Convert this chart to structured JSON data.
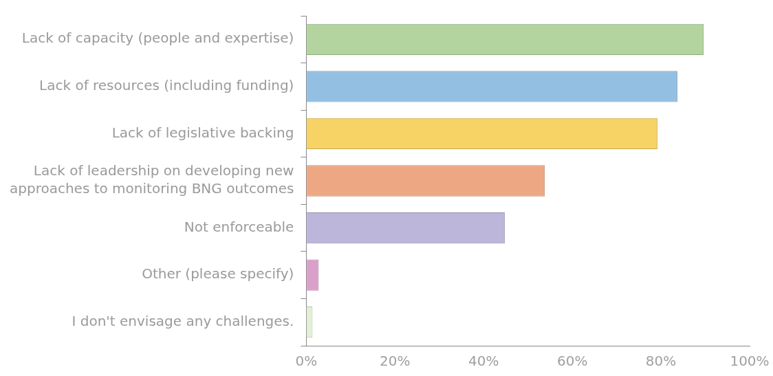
{
  "chart_data": {
    "type": "bar",
    "orientation": "horizontal",
    "categories": [
      "Lack of capacity (people and expertise)",
      "Lack of resources (including funding)",
      "Lack of legislative backing",
      "Lack of leadership on developing new approaches to monitoring BNG outcomes",
      "Not enforceable",
      "Other (please specify)",
      "I don't envisage any challenges."
    ],
    "values": [
      89.6,
      83.7,
      79.2,
      53.8,
      44.8,
      2.8,
      1.4
    ],
    "colors": [
      "#b3d49e",
      "#93bfe2",
      "#f7d264",
      "#eda883",
      "#bbb6da",
      "#d9a0c9",
      "#e3f0d6"
    ],
    "xlim": [
      0,
      100
    ],
    "xticks": [
      {
        "value": 0,
        "label": "0%"
      },
      {
        "value": 20,
        "label": "20%"
      },
      {
        "value": 40,
        "label": "40%"
      },
      {
        "value": 60,
        "label": "60%"
      },
      {
        "value": 80,
        "label": "80%"
      },
      {
        "value": 100,
        "label": "100%"
      }
    ],
    "grid": false,
    "legend": false
  }
}
